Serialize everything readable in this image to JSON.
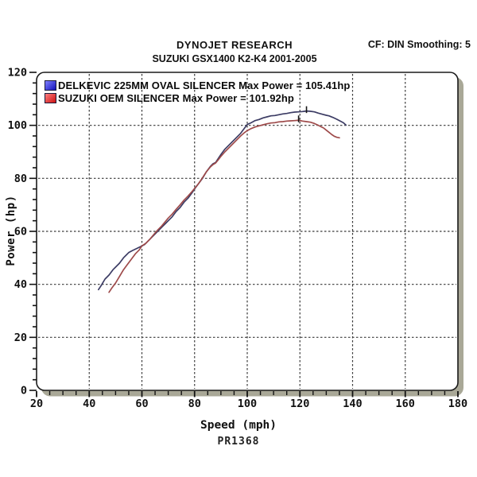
{
  "header": {
    "title": "DYNOJET RESEARCH",
    "subtitle": "SUZUKI GSX1400 K2-K4 2001-2005",
    "settings": "CF: DIN  Smoothing: 5"
  },
  "footer": {
    "run_code": "PR1368"
  },
  "colors": {
    "frame": "#1a1a1a",
    "shadow": "#a9a897",
    "grid": "#3a3a3a",
    "tick": "#111111",
    "blue_line": "#3c3c64",
    "red_line": "#9e4a4a",
    "blue_swatch_start": "#8080ff",
    "blue_swatch_end": "#1111bb",
    "red_swatch_start": "#ff8080",
    "red_swatch_end": "#cc1111"
  },
  "chart_data": {
    "type": "line",
    "title": "DYNOJET RESEARCH — SUZUKI GSX1400 K2-K4 2001-2005",
    "xlabel": "Speed (mph)",
    "ylabel": "Power (hp)",
    "xlim": [
      20,
      180
    ],
    "ylim": [
      0,
      120
    ],
    "x_major_step": 20,
    "x_minor_step": 5,
    "y_major_step": 20,
    "y_minor_step": 4,
    "grid": "dashed",
    "legend_position": "inside-top-left",
    "correction_factor": "DIN",
    "smoothing": 5,
    "series": [
      {
        "name": "DELKEVIC 225MM OVAL SILENCER",
        "label": "DELKEVIC 225MM OVAL SILENCER Max Power = 105.41hp",
        "max_power_hp": 105.41,
        "max_power_mph": 122.5,
        "color_key": "blue",
        "points": [
          [
            43.5,
            38
          ],
          [
            44.5,
            39.5
          ],
          [
            46,
            42
          ],
          [
            47.5,
            43.5
          ],
          [
            49,
            45.5
          ],
          [
            50,
            46.5
          ],
          [
            51.5,
            48
          ],
          [
            53,
            50
          ],
          [
            54,
            51
          ],
          [
            55,
            52
          ],
          [
            56.5,
            52.8
          ],
          [
            58,
            53.5
          ],
          [
            60,
            54.5
          ],
          [
            61,
            55
          ],
          [
            62,
            56
          ],
          [
            63.5,
            57.5
          ],
          [
            65,
            59
          ],
          [
            66.5,
            60.5
          ],
          [
            68,
            62
          ],
          [
            69,
            63
          ],
          [
            70,
            64
          ],
          [
            71.5,
            65.5
          ],
          [
            73,
            67.5
          ],
          [
            74.5,
            69
          ],
          [
            76,
            71
          ],
          [
            77.5,
            72.5
          ],
          [
            79,
            74.5
          ],
          [
            80,
            76
          ],
          [
            81.5,
            78
          ],
          [
            83,
            80
          ],
          [
            84.5,
            82.5
          ],
          [
            86,
            84.5
          ],
          [
            87,
            85.5
          ],
          [
            88,
            86
          ],
          [
            89,
            87.5
          ],
          [
            90,
            89
          ],
          [
            91.5,
            91
          ],
          [
            93,
            92.5
          ],
          [
            94.5,
            94
          ],
          [
            96,
            95.5
          ],
          [
            97.5,
            97
          ],
          [
            99,
            99
          ],
          [
            100,
            100.3
          ],
          [
            101.5,
            101
          ],
          [
            103,
            101.8
          ],
          [
            104.5,
            102.2
          ],
          [
            106,
            102.8
          ],
          [
            107.5,
            103.2
          ],
          [
            109,
            103.6
          ],
          [
            110.5,
            103.7
          ],
          [
            112,
            104
          ],
          [
            113.5,
            104.3
          ],
          [
            115,
            104.5
          ],
          [
            116.5,
            104.8
          ],
          [
            118,
            105
          ],
          [
            119.5,
            105.1
          ],
          [
            121,
            105.2
          ],
          [
            122.5,
            105.41
          ],
          [
            124,
            105.3
          ],
          [
            125.5,
            105.1
          ],
          [
            127,
            104.6
          ],
          [
            128.5,
            104.2
          ],
          [
            130,
            103.8
          ],
          [
            131,
            103.6
          ],
          [
            132.5,
            103
          ],
          [
            134,
            102.3
          ],
          [
            135.5,
            101.5
          ],
          [
            136.5,
            101
          ],
          [
            137.5,
            100.1
          ]
        ]
      },
      {
        "name": "SUZUKI OEM SILENCER",
        "label": "SUZUKI OEM SILENCER Max Power = 101.92hp",
        "max_power_hp": 101.92,
        "max_power_mph": 119.5,
        "color_key": "red",
        "points": [
          [
            47.5,
            37
          ],
          [
            48.5,
            38.5
          ],
          [
            50,
            40.5
          ],
          [
            51.5,
            43
          ],
          [
            53,
            45.5
          ],
          [
            54.5,
            47.5
          ],
          [
            56,
            49.5
          ],
          [
            57.5,
            51.5
          ],
          [
            59,
            53
          ],
          [
            60,
            54.5
          ],
          [
            61.5,
            55.5
          ],
          [
            63,
            57
          ],
          [
            64.5,
            58.8
          ],
          [
            66,
            60.5
          ],
          [
            67.5,
            62
          ],
          [
            69,
            63.8
          ],
          [
            70,
            65
          ],
          [
            71.5,
            66.5
          ],
          [
            73,
            68.3
          ],
          [
            74.5,
            70
          ],
          [
            76,
            71.8
          ],
          [
            77.5,
            73.3
          ],
          [
            79,
            75
          ],
          [
            80,
            76.2
          ],
          [
            81.5,
            78
          ],
          [
            83,
            80.2
          ],
          [
            84.5,
            82.5
          ],
          [
            86,
            84.3
          ],
          [
            87,
            85.2
          ],
          [
            88,
            85.8
          ],
          [
            89,
            87
          ],
          [
            90,
            88.3
          ],
          [
            91.5,
            90
          ],
          [
            93,
            91.5
          ],
          [
            94.5,
            93
          ],
          [
            96,
            94.5
          ],
          [
            97.5,
            96
          ],
          [
            99,
            97.3
          ],
          [
            100,
            98
          ],
          [
            101.5,
            98.8
          ],
          [
            103,
            99.4
          ],
          [
            104.5,
            99.8
          ],
          [
            106,
            100.2
          ],
          [
            107.5,
            100.6
          ],
          [
            109,
            100.9
          ],
          [
            110.5,
            101
          ],
          [
            112,
            101.3
          ],
          [
            113.5,
            101.4
          ],
          [
            115,
            101.6
          ],
          [
            116.5,
            101.7
          ],
          [
            118,
            101.8
          ],
          [
            119.5,
            101.92
          ],
          [
            121,
            101.6
          ],
          [
            122.5,
            101.4
          ],
          [
            124,
            101.2
          ],
          [
            125.5,
            100.7
          ],
          [
            127,
            100
          ],
          [
            128,
            99.5
          ],
          [
            129,
            99
          ],
          [
            130,
            98.2
          ],
          [
            131,
            97.4
          ],
          [
            132,
            96.6
          ],
          [
            133,
            95.9
          ],
          [
            134,
            95.5
          ],
          [
            135,
            95.3
          ]
        ]
      }
    ]
  }
}
